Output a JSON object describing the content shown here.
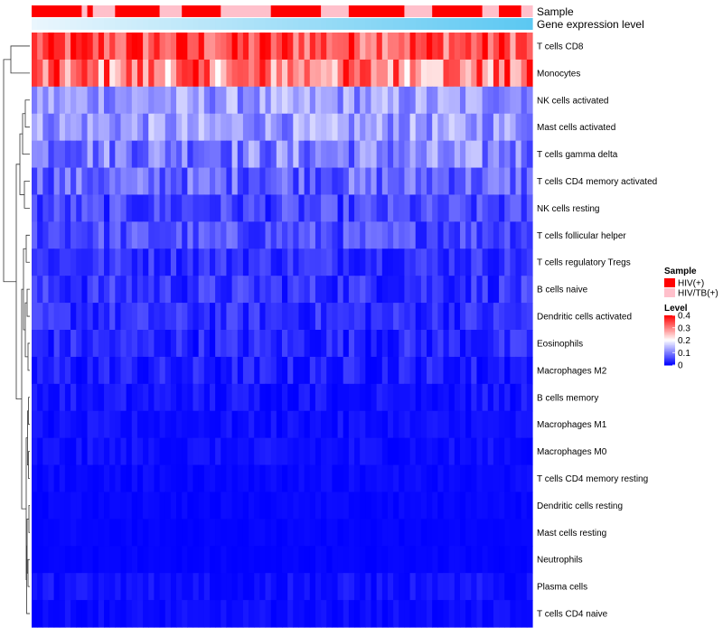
{
  "chart_data": {
    "type": "heatmap",
    "title": "",
    "annotations": {
      "sample_label": "Sample",
      "gene_expression_label": "Gene expression level"
    },
    "sample_groups": [
      "HIV(+)",
      "HIV(+)",
      "HIV(+)",
      "HIV(+)",
      "HIV(+)",
      "HIV(+)",
      "HIV(+)",
      "HIV(+)",
      "HIV(+)",
      "HIV/TB(+)",
      "HIV(+)",
      "HIV/TB(+)",
      "HIV/TB(+)",
      "HIV/TB(+)",
      "HIV/TB(+)",
      "HIV(+)",
      "HIV(+)",
      "HIV(+)",
      "HIV(+)",
      "HIV(+)",
      "HIV(+)",
      "HIV(+)",
      "HIV(+)",
      "HIV/TB(+)",
      "HIV/TB(+)",
      "HIV/TB(+)",
      "HIV/TB(+)",
      "HIV(+)",
      "HIV(+)",
      "HIV(+)",
      "HIV(+)",
      "HIV(+)",
      "HIV(+)",
      "HIV(+)",
      "HIV/TB(+)",
      "HIV/TB(+)",
      "HIV/TB(+)",
      "HIV/TB(+)",
      "HIV/TB(+)",
      "HIV/TB(+)",
      "HIV/TB(+)",
      "HIV/TB(+)",
      "HIV/TB(+)",
      "HIV(+)",
      "HIV(+)",
      "HIV(+)",
      "HIV(+)",
      "HIV(+)",
      "HIV(+)",
      "HIV(+)",
      "HIV(+)",
      "HIV(+)",
      "HIV/TB(+)",
      "HIV/TB(+)",
      "HIV/TB(+)",
      "HIV/TB(+)",
      "HIV/TB(+)",
      "HIV(+)",
      "HIV(+)",
      "HIV(+)",
      "HIV(+)",
      "HIV(+)",
      "HIV(+)",
      "HIV(+)",
      "HIV(+)",
      "HIV(+)",
      "HIV(+)",
      "HIV/TB(+)",
      "HIV/TB(+)",
      "HIV/TB(+)",
      "HIV/TB(+)",
      "HIV/TB(+)",
      "HIV(+)",
      "HIV(+)",
      "HIV(+)",
      "HIV(+)",
      "HIV(+)",
      "HIV(+)",
      "HIV(+)",
      "HIV(+)",
      "HIV(+)",
      "HIV/TB(+)",
      "HIV/TB(+)",
      "HIV/TB(+)",
      "HIV(+)",
      "HIV(+)",
      "HIV(+)",
      "HIV(+)",
      "HIV/TB(+)",
      "HIV/TB(+)"
    ],
    "row_labels": [
      "T cells CD8",
      "Monocytes",
      "NK cells activated",
      "Mast cells activated",
      "T cells gamma delta",
      "T cells CD4 memory activated",
      "NK cells resting",
      "T cells follicular helper",
      "T cells regulatory  Tregs",
      "B cells naive",
      "Dendritic cells activated",
      "Eosinophils",
      "Macrophages M2",
      "B cells memory",
      "Macrophages M1",
      "Macrophages M0",
      "T cells CD4 memory resting",
      "Dendritic cells resting",
      "Mast cells resting",
      "Neutrophils",
      "Plasma cells",
      "T cells CD4 naive"
    ],
    "row_means": [
      0.34,
      0.3,
      0.12,
      0.12,
      0.1,
      0.08,
      0.05,
      0.06,
      0.04,
      0.04,
      0.035,
      0.03,
      0.02,
      0.015,
      0.01,
      0.01,
      0.005,
      0.003,
      0.003,
      0.002,
      0.01,
      0.005
    ],
    "row_spread": [
      0.08,
      0.1,
      0.05,
      0.05,
      0.06,
      0.05,
      0.04,
      0.04,
      0.03,
      0.035,
      0.03,
      0.03,
      0.03,
      0.02,
      0.015,
      0.015,
      0.01,
      0.008,
      0.005,
      0.004,
      0.02,
      0.015
    ],
    "value_range": [
      0,
      0.4
    ],
    "color_scale": {
      "low": "#0000ff",
      "mid": "#ffffff",
      "high": "#ff0000",
      "mid_value": 0.2
    },
    "gene_expression_colors": {
      "low": "#eaf6fd",
      "high": "#5cc8f2"
    },
    "legends": {
      "sample": {
        "title": "Sample",
        "entries": [
          {
            "label": "HIV(+)",
            "color": "#ff0000"
          },
          {
            "label": "HIV/TB(+)",
            "color": "#ffc0cb"
          }
        ]
      },
      "level": {
        "title": "Level",
        "ticks": [
          0.4,
          0.3,
          0.2,
          0.1,
          0
        ]
      }
    }
  }
}
